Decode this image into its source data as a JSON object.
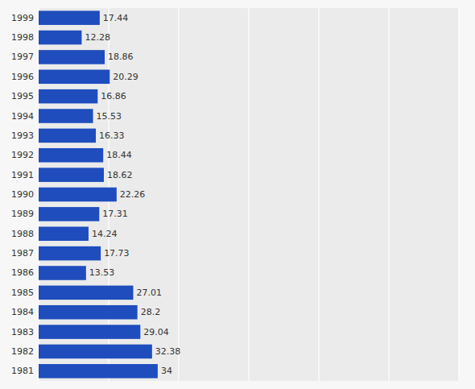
{
  "chart_data": {
    "type": "bar",
    "orientation": "horizontal",
    "categories": [
      "1999",
      "1998",
      "1997",
      "1996",
      "1995",
      "1994",
      "1993",
      "1992",
      "1991",
      "1990",
      "1989",
      "1988",
      "1987",
      "1986",
      "1985",
      "1984",
      "1983",
      "1982",
      "1981"
    ],
    "values": [
      17.44,
      12.28,
      18.86,
      20.29,
      16.86,
      15.53,
      16.33,
      18.44,
      18.62,
      22.26,
      17.31,
      14.24,
      17.73,
      13.53,
      27.01,
      28.2,
      29.04,
      32.38,
      34
    ],
    "color": "#1f4dbd",
    "xlim": [
      0,
      120
    ],
    "xticks": [
      0,
      20,
      40,
      60,
      80,
      100,
      120
    ],
    "grid": true,
    "data_labels": true,
    "tick_labels": "y"
  }
}
